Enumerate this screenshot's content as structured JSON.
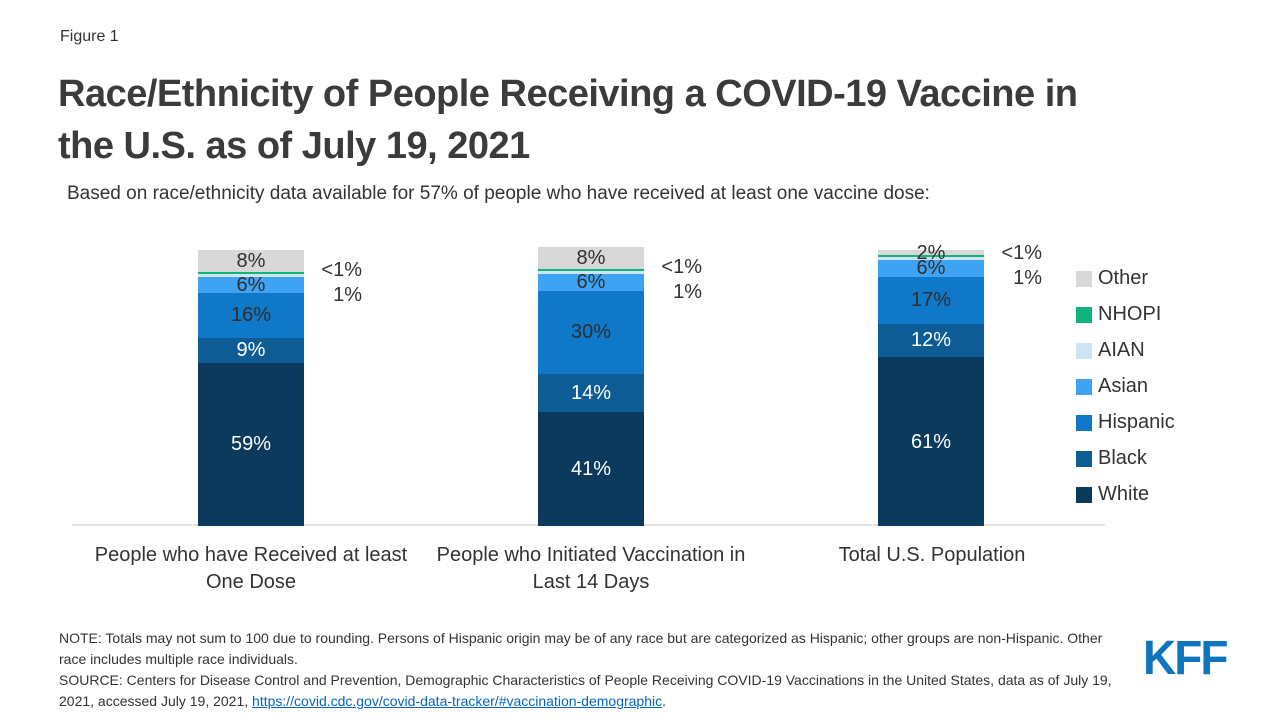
{
  "header": {
    "figure_label": "Figure 1",
    "title_lines": [
      "Race/Ethnicity of People Receiving a COVID-19 Vaccine in",
      "the U.S. as of July 19, 2021"
    ],
    "subtitle": "Based on race/ethnicity data available for 57% of people who have received at least one vaccine dose:"
  },
  "chart_data": {
    "type": "bar",
    "stacked": true,
    "unit": "percent",
    "ylim": [
      0,
      100
    ],
    "grid": false,
    "legend_position": "right",
    "categories": [
      "People who have Received at least One Dose",
      "People who Initiated Vaccination in Last 14 Days",
      "Total U.S. Population"
    ],
    "series": [
      {
        "name": "White",
        "color": "#0b3a5c",
        "values": [
          59,
          41,
          61
        ],
        "labels": [
          "59%",
          "41%",
          "61%"
        ],
        "label_pos": "inside",
        "label_color": "#ffffff"
      },
      {
        "name": "Black",
        "color": "#0d5c95",
        "values": [
          9,
          14,
          12
        ],
        "labels": [
          "9%",
          "14%",
          "12%"
        ],
        "label_pos": "inside",
        "label_color": "#ffffff"
      },
      {
        "name": "Hispanic",
        "color": "#1078c8",
        "values": [
          16,
          30,
          17
        ],
        "labels": [
          "16%",
          "30%",
          "17%"
        ],
        "label_pos": "inside",
        "label_color": "#2e2e2e"
      },
      {
        "name": "Asian",
        "color": "#3ea3f2",
        "values": [
          6,
          6,
          6
        ],
        "labels": [
          "6%",
          "6%",
          "6%"
        ],
        "label_pos": "inside",
        "label_color": "#2e2e2e"
      },
      {
        "name": "AIAN",
        "color": "#cfe4f7",
        "values": [
          1,
          1,
          1
        ],
        "labels": [
          "1%",
          "1%",
          "1%"
        ],
        "label_pos": "outside",
        "label_color": "#333333"
      },
      {
        "name": "NHOPI",
        "color": "#0fb578",
        "values": [
          0.5,
          0.5,
          0.5
        ],
        "labels": [
          "<1%",
          "<1%",
          "<1%"
        ],
        "label_pos": "outside",
        "label_color": "#333333"
      },
      {
        "name": "Other",
        "color": "#d8d8d8",
        "values": [
          8,
          8,
          2
        ],
        "labels": [
          "8%",
          "8%",
          "2%"
        ],
        "label_pos": "inside",
        "label_color": "#2e2e2e"
      }
    ],
    "legend": [
      {
        "label": "Other",
        "color": "#d8d8d8"
      },
      {
        "label": "NHOPI",
        "color": "#0fb578"
      },
      {
        "label": "AIAN",
        "color": "#cfe4f7"
      },
      {
        "label": "Asian",
        "color": "#3ea3f2"
      },
      {
        "label": "Hispanic",
        "color": "#1078c8"
      },
      {
        "label": "Black",
        "color": "#0d5c95"
      },
      {
        "label": "White",
        "color": "#0b3a5c"
      }
    ]
  },
  "footer": {
    "note": "NOTE: Totals may not sum to 100 due to rounding. Persons of Hispanic origin may be of any race but are categorized as Hispanic; other groups are non-Hispanic. Other race includes multiple race individuals.",
    "source_prefix": "SOURCE: Centers for Disease Control and Prevention, Demographic Characteristics of People Receiving COVID-19 Vaccinations in the United States, data as of July 19, 2021, accessed July 19, 2021, ",
    "source_link": "https://covid.cdc.gov/covid-data-tracker/#vaccination-demographic",
    "source_suffix": ".",
    "logo": "KFF"
  }
}
